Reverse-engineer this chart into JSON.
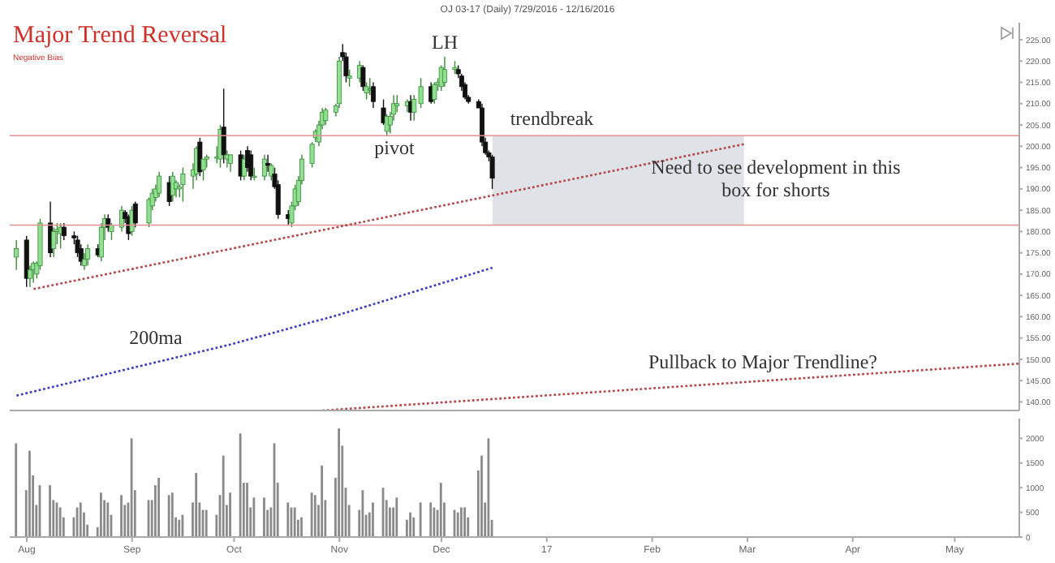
{
  "chart_data": [
    {
      "type": "candlestick",
      "title": "Major Trend Reversal",
      "subtitle": "Negative Bias",
      "x": [
        "2016-07-29",
        "2016-08-01",
        "2016-08-02",
        "2016-08-03",
        "2016-08-04",
        "2016-08-05",
        "2016-08-08",
        "2016-08-09",
        "2016-08-10",
        "2016-08-11",
        "2016-08-12",
        "2016-08-15",
        "2016-08-16",
        "2016-08-17",
        "2016-08-18",
        "2016-08-19",
        "2016-08-22",
        "2016-08-23",
        "2016-08-24",
        "2016-08-25",
        "2016-08-26",
        "2016-08-29",
        "2016-08-30",
        "2016-08-31",
        "2016-09-01",
        "2016-09-02",
        "2016-09-06",
        "2016-09-07",
        "2016-09-08",
        "2016-09-09",
        "2016-09-12",
        "2016-09-13",
        "2016-09-14",
        "2016-09-15",
        "2016-09-16",
        "2016-09-19",
        "2016-09-20",
        "2016-09-21",
        "2016-09-22",
        "2016-09-23",
        "2016-09-26",
        "2016-09-27",
        "2016-09-28",
        "2016-09-29",
        "2016-09-30",
        "2016-10-03",
        "2016-10-04",
        "2016-10-05",
        "2016-10-06",
        "2016-10-07",
        "2016-10-10",
        "2016-10-11",
        "2016-10-12",
        "2016-10-13",
        "2016-10-14",
        "2016-10-17",
        "2016-10-18",
        "2016-10-19",
        "2016-10-20",
        "2016-10-21",
        "2016-10-24",
        "2016-10-25",
        "2016-10-26",
        "2016-10-27",
        "2016-10-28",
        "2016-10-31",
        "2016-11-01",
        "2016-11-02",
        "2016-11-03",
        "2016-11-04",
        "2016-11-07",
        "2016-11-08",
        "2016-11-09",
        "2016-11-10",
        "2016-11-11",
        "2016-11-14",
        "2016-11-15",
        "2016-11-16",
        "2016-11-17",
        "2016-11-18",
        "2016-11-21",
        "2016-11-22",
        "2016-11-23",
        "2016-11-25",
        "2016-11-28",
        "2016-11-29",
        "2016-11-30",
        "2016-12-01",
        "2016-12-02",
        "2016-12-05",
        "2016-12-06",
        "2016-12-07",
        "2016-12-08",
        "2016-12-09",
        "2016-12-12",
        "2016-12-13",
        "2016-12-14",
        "2016-12-15",
        "2016-12-16"
      ],
      "ohlc": [
        [
          174,
          178,
          171,
          176
        ],
        [
          178,
          179,
          167,
          169
        ],
        [
          169,
          172,
          167,
          171
        ],
        [
          171,
          173,
          168,
          172.5
        ],
        [
          170,
          173,
          169,
          172.5
        ],
        [
          172,
          183,
          171,
          182
        ],
        [
          182,
          187,
          174,
          175
        ],
        [
          176,
          181,
          174,
          180
        ],
        [
          180,
          182,
          177,
          180.5
        ],
        [
          179.5,
          182,
          176,
          181
        ],
        [
          181,
          182,
          178,
          179
        ],
        [
          179,
          180,
          177,
          178.5
        ],
        [
          178,
          179,
          174,
          175
        ],
        [
          176,
          177,
          172,
          173
        ],
        [
          172,
          175,
          171,
          173.5
        ],
        [
          173.5,
          177,
          172,
          176
        ],
        [
          176,
          177,
          174,
          174.5
        ],
        [
          174,
          182,
          173,
          181
        ],
        [
          181,
          184,
          178,
          183
        ],
        [
          183,
          184,
          180,
          181
        ],
        [
          180,
          182,
          178,
          181.5
        ],
        [
          181,
          186,
          180,
          185
        ],
        [
          184.5,
          185,
          182,
          183
        ],
        [
          183.5,
          184,
          178,
          179.5
        ],
        [
          180,
          186,
          179,
          185
        ],
        [
          186.5,
          187,
          181,
          182
        ],
        [
          182,
          188,
          181,
          187.5
        ],
        [
          186,
          190,
          185,
          189
        ],
        [
          188,
          191,
          187,
          190
        ],
        [
          189,
          194,
          188,
          193
        ],
        [
          191.5,
          193,
          186,
          187
        ],
        [
          188.5,
          194,
          187,
          193
        ],
        [
          190,
          192,
          188,
          191.5
        ],
        [
          190,
          191,
          188,
          190.5
        ],
        [
          191,
          195,
          187,
          193.5
        ],
        [
          193,
          196,
          190,
          194.5
        ],
        [
          193.5,
          200,
          192,
          199.5
        ],
        [
          201,
          202,
          193,
          194
        ],
        [
          194.5,
          197,
          192,
          197
        ],
        [
          197,
          198,
          195,
          197.5
        ],
        [
          197.5,
          200,
          196,
          197.5
        ],
        [
          197,
          205,
          195,
          204
        ],
        [
          204.5,
          213.5,
          196,
          198
        ],
        [
          197,
          199,
          195,
          198
        ],
        [
          196,
          198,
          194,
          198
        ],
        [
          198,
          199,
          192,
          193
        ],
        [
          193,
          198,
          192,
          197
        ],
        [
          199,
          200,
          194,
          195
        ],
        [
          198,
          199,
          192,
          193
        ],
        [
          193,
          195,
          192,
          193
        ],
        [
          193,
          198,
          192,
          197
        ],
        [
          196,
          198,
          194,
          195.5
        ],
        [
          193,
          196,
          192,
          195.5
        ],
        [
          193.5,
          195,
          190,
          190.5
        ],
        [
          191,
          192,
          183,
          184
        ],
        [
          184,
          185,
          181.5,
          183
        ],
        [
          182,
          187,
          181,
          186
        ],
        [
          186,
          191,
          185,
          190
        ],
        [
          187,
          193,
          186,
          192
        ],
        [
          192,
          198,
          191,
          197
        ],
        [
          196,
          201,
          195,
          200.5
        ],
        [
          202,
          204,
          201,
          203.5
        ],
        [
          201,
          206,
          200,
          205
        ],
        [
          205,
          209,
          204,
          208
        ],
        [
          206,
          209,
          205,
          208.5
        ],
        [
          208,
          210,
          207,
          209.5
        ],
        [
          210,
          221,
          209,
          220
        ],
        [
          222,
          224,
          220,
          221
        ],
        [
          221,
          222,
          215,
          216.5
        ],
        [
          216,
          218,
          214,
          216.5
        ],
        [
          216,
          220,
          215,
          219
        ],
        [
          218.5,
          219,
          213,
          214
        ],
        [
          212.5,
          215,
          211,
          214
        ],
        [
          213.5,
          216,
          212,
          213.5
        ],
        [
          214,
          215,
          209,
          210.5
        ],
        [
          209,
          211,
          205,
          205.5
        ],
        [
          203.5,
          207.5,
          202.5,
          207
        ],
        [
          205,
          208,
          203,
          207
        ],
        [
          207.5,
          212,
          206,
          210
        ],
        [
          209.5,
          212,
          208,
          210
        ],
        [
          209.5,
          211,
          208,
          210.5
        ],
        [
          210.5,
          212,
          206,
          208
        ],
        [
          208,
          212,
          206,
          211
        ],
        [
          210,
          216,
          209,
          214
        ],
        [
          214,
          215,
          210,
          210.5
        ],
        [
          211,
          215,
          210,
          214.5
        ],
        [
          214.5,
          216,
          213,
          215
        ],
        [
          214,
          219,
          213,
          218.5
        ],
        [
          215,
          221,
          214,
          218
        ],
        [
          218,
          220,
          217,
          218.5
        ],
        [
          218,
          219,
          216,
          217
        ],
        [
          216.5,
          217,
          213,
          214
        ],
        [
          214.5,
          215,
          211,
          211.5
        ],
        [
          211.5,
          212,
          210,
          210.5
        ],
        [
          210.5,
          211,
          209,
          209
        ],
        [
          209,
          210,
          200,
          201
        ],
        [
          201,
          202,
          198,
          198.5
        ],
        [
          198.5,
          199,
          196.5,
          197.5
        ],
        [
          197.5,
          198,
          190,
          192.5
        ]
      ],
      "series": [
        {
          "type": "line",
          "x": [
            "2016-08-03",
            "2017-02-28"
          ],
          "values": [
            166.5,
            200.5
          ],
          "color": "#b5474b",
          "line_style": "dotted"
        },
        {
          "type": "line",
          "x": [
            "2016-10-27",
            "2017-05-20"
          ],
          "values": [
            138,
            149
          ],
          "color": "#b5474b",
          "line_style": "dotted"
        },
        {
          "type": "line",
          "x": [
            "2016-07-29",
            "2016-09-30",
            "2016-11-01",
            "2016-12-16"
          ],
          "values": [
            141.5,
            153.5,
            160.5,
            171.5
          ],
          "color": "#3b3bc4",
          "line_style": "dotted"
        }
      ],
      "ref_lines": [
        {
          "axis": "y",
          "value": 202.5,
          "color": "#e09090"
        },
        {
          "axis": "y",
          "value": 181.5,
          "color": "#e09090"
        }
      ],
      "bands": [
        {
          "axis": "x",
          "from": "2016-12-16",
          "to": "2017-02-28",
          "color": "#dfe2e6"
        }
      ],
      "annotations": [
        "OJ 03-17 (Daily) 7/29/2016 - 12/16/2016",
        "LH",
        "pivot",
        "trendbreak",
        "Need to see development in this box for shorts",
        "200ma",
        "Pullback to Major Trendline?"
      ],
      "xlim": [
        "2016-07-27",
        "2017-05-20"
      ],
      "ylim": [
        138,
        229
      ],
      "yticks": [
        {
          "value": 140,
          "label": "140.00"
        },
        {
          "value": 145,
          "label": "145.00"
        },
        {
          "value": 150,
          "label": "150.00"
        },
        {
          "value": 155,
          "label": "155.00"
        },
        {
          "value": 160,
          "label": "160.00"
        },
        {
          "value": 165,
          "label": "165.00"
        },
        {
          "value": 170,
          "label": "170.00"
        },
        {
          "value": 175,
          "label": "175.00"
        },
        {
          "value": 180,
          "label": "180.00"
        },
        {
          "value": 185,
          "label": "185.00"
        },
        {
          "value": 190,
          "label": "190.00"
        },
        {
          "value": 195,
          "label": "195.00"
        },
        {
          "value": 200,
          "label": "200.00"
        },
        {
          "value": 205,
          "label": "205.00"
        },
        {
          "value": 210,
          "label": "210.00"
        },
        {
          "value": 215,
          "label": "215.00"
        },
        {
          "value": 220,
          "label": "220.00"
        },
        {
          "value": 225,
          "label": "225.00"
        }
      ],
      "tick_labels": "y"
    },
    {
      "type": "bar",
      "color": "#8a8a8a",
      "x": [
        "2016-07-29",
        "2016-08-01",
        "2016-08-02",
        "2016-08-03",
        "2016-08-04",
        "2016-08-05",
        "2016-08-08",
        "2016-08-09",
        "2016-08-10",
        "2016-08-11",
        "2016-08-12",
        "2016-08-15",
        "2016-08-16",
        "2016-08-17",
        "2016-08-18",
        "2016-08-19",
        "2016-08-22",
        "2016-08-23",
        "2016-08-24",
        "2016-08-25",
        "2016-08-26",
        "2016-08-29",
        "2016-08-30",
        "2016-08-31",
        "2016-09-01",
        "2016-09-02",
        "2016-09-06",
        "2016-09-07",
        "2016-09-08",
        "2016-09-09",
        "2016-09-12",
        "2016-09-13",
        "2016-09-14",
        "2016-09-15",
        "2016-09-16",
        "2016-09-19",
        "2016-09-20",
        "2016-09-21",
        "2016-09-22",
        "2016-09-23",
        "2016-09-26",
        "2016-09-27",
        "2016-09-28",
        "2016-09-29",
        "2016-09-30",
        "2016-10-03",
        "2016-10-04",
        "2016-10-05",
        "2016-10-06",
        "2016-10-07",
        "2016-10-10",
        "2016-10-11",
        "2016-10-12",
        "2016-10-13",
        "2016-10-14",
        "2016-10-17",
        "2016-10-18",
        "2016-10-19",
        "2016-10-20",
        "2016-10-21",
        "2016-10-24",
        "2016-10-25",
        "2016-10-26",
        "2016-10-27",
        "2016-10-28",
        "2016-10-31",
        "2016-11-01",
        "2016-11-02",
        "2016-11-03",
        "2016-11-04",
        "2016-11-07",
        "2016-11-08",
        "2016-11-09",
        "2016-11-10",
        "2016-11-11",
        "2016-11-14",
        "2016-11-15",
        "2016-11-16",
        "2016-11-17",
        "2016-11-18",
        "2016-11-21",
        "2016-11-22",
        "2016-11-23",
        "2016-11-25",
        "2016-11-28",
        "2016-11-29",
        "2016-11-30",
        "2016-12-01",
        "2016-12-02",
        "2016-12-05",
        "2016-12-06",
        "2016-12-07",
        "2016-12-08",
        "2016-12-09",
        "2016-12-12",
        "2016-12-13",
        "2016-12-14",
        "2016-12-15",
        "2016-12-16"
      ],
      "values": [
        1900,
        950,
        1750,
        1250,
        650,
        1050,
        1050,
        750,
        700,
        600,
        400,
        400,
        600,
        700,
        500,
        250,
        200,
        900,
        750,
        700,
        450,
        850,
        650,
        700,
        2000,
        950,
        750,
        750,
        1050,
        1200,
        850,
        900,
        400,
        350,
        450,
        700,
        1300,
        700,
        550,
        550,
        450,
        850,
        1650,
        650,
        900,
        2100,
        1100,
        1100,
        600,
        800,
        800,
        550,
        600,
        1900,
        1100,
        700,
        600,
        600,
        350,
        400,
        900,
        850,
        650,
        1450,
        750,
        1200,
        2200,
        1850,
        1000,
        650,
        550,
        950,
        450,
        500,
        700,
        1000,
        750,
        600,
        600,
        800,
        350,
        500,
        400,
        700,
        700,
        600,
        550,
        1100,
        700,
        550,
        500,
        600,
        600,
        400,
        1350,
        1650,
        700,
        2000,
        350
      ],
      "xlim": [
        "2016-07-27",
        "2017-05-20"
      ],
      "xticks": [
        {
          "value": "2016-08-01",
          "label": "Aug"
        },
        {
          "value": "2016-09-01",
          "label": "Sep"
        },
        {
          "value": "2016-10-01",
          "label": "Oct"
        },
        {
          "value": "2016-11-01",
          "label": "Nov"
        },
        {
          "value": "2016-12-01",
          "label": "Dec"
        },
        {
          "value": "2017-01-01",
          "label": "17"
        },
        {
          "value": "2017-02-01",
          "label": "Feb"
        },
        {
          "value": "2017-03-01",
          "label": "Mar"
        },
        {
          "value": "2017-04-01",
          "label": "Apr"
        },
        {
          "value": "2017-05-01",
          "label": "May"
        }
      ],
      "ylim": [
        0,
        2400
      ],
      "yticks": [
        0,
        500,
        1000,
        1500,
        2000
      ]
    }
  ]
}
